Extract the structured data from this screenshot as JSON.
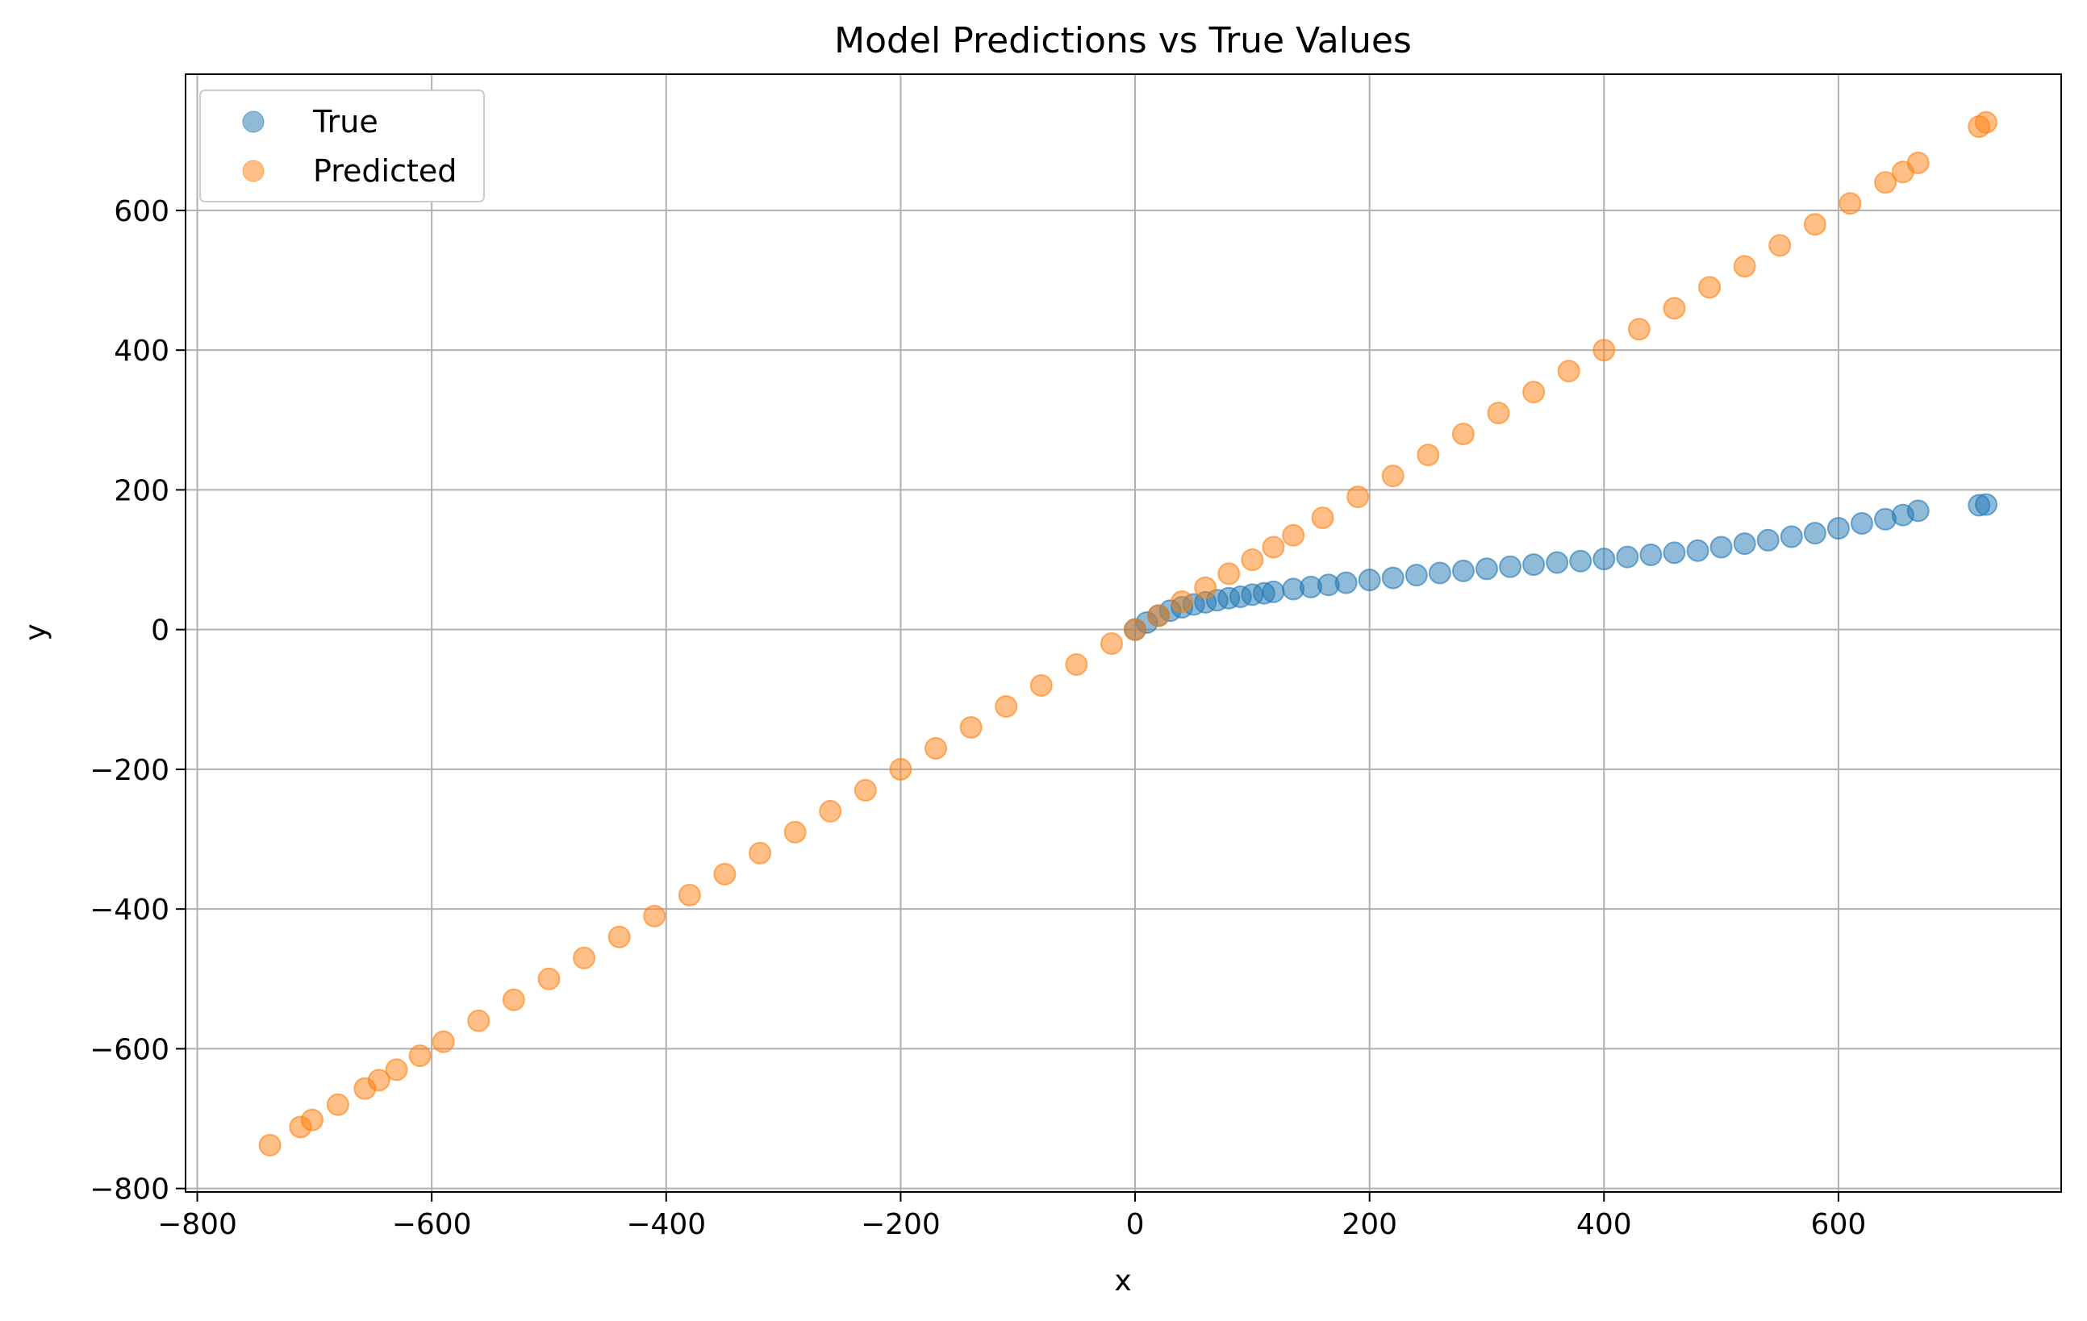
{
  "chart_data": {
    "type": "scatter",
    "title": "Model Predictions vs True Values",
    "xlabel": "x",
    "ylabel": "y",
    "xlim": [
      -810,
      790
    ],
    "ylim": [
      -805,
      795
    ],
    "xticks": [
      -800,
      -600,
      -400,
      -200,
      0,
      200,
      400,
      600
    ],
    "yticks": [
      -800,
      -600,
      -400,
      -200,
      0,
      200,
      400,
      600
    ],
    "xtick_labels": [
      "−800",
      "−600",
      "−400",
      "−200",
      "0",
      "200",
      "400",
      "600"
    ],
    "ytick_labels": [
      "−800",
      "−600",
      "−400",
      "−200",
      "0",
      "200",
      "400",
      "600"
    ],
    "grid": true,
    "legend_position": "top-left",
    "series": [
      {
        "name": "True",
        "color": "#1f77b4",
        "x": [
          0,
          10,
          20,
          30,
          40,
          50,
          60,
          70,
          80,
          90,
          100,
          110,
          118,
          135,
          150,
          165,
          180,
          200,
          220,
          240,
          260,
          280,
          300,
          320,
          340,
          360,
          380,
          400,
          420,
          440,
          460,
          480,
          500,
          520,
          540,
          560,
          580,
          600,
          620,
          640,
          655,
          668,
          720,
          726
        ],
        "y": [
          0,
          10,
          20,
          27,
          32,
          36,
          39,
          42,
          45,
          47,
          50,
          52,
          54,
          58,
          61,
          64,
          67,
          71,
          74,
          78,
          81,
          84,
          87,
          90,
          93,
          96,
          98,
          101,
          104,
          107,
          110,
          113,
          118,
          123,
          128,
          133,
          138,
          145,
          152,
          158,
          164,
          170,
          178,
          179
        ]
      },
      {
        "name": "Predicted",
        "color": "#ff7f0e",
        "x": [
          -738,
          -712,
          -702,
          -680,
          -657,
          -645,
          -630,
          -610,
          -590,
          -560,
          -530,
          -500,
          -470,
          -440,
          -410,
          -380,
          -350,
          -320,
          -290,
          -260,
          -230,
          -200,
          -170,
          -140,
          -110,
          -80,
          -50,
          -20,
          0,
          20,
          40,
          60,
          80,
          100,
          118,
          135,
          160,
          190,
          220,
          250,
          280,
          310,
          340,
          370,
          400,
          430,
          460,
          490,
          520,
          550,
          580,
          610,
          640,
          655,
          668,
          720,
          726
        ],
        "y": [
          -738,
          -712,
          -702,
          -680,
          -657,
          -645,
          -630,
          -610,
          -590,
          -560,
          -530,
          -500,
          -470,
          -440,
          -410,
          -380,
          -350,
          -320,
          -290,
          -260,
          -230,
          -200,
          -170,
          -140,
          -110,
          -80,
          -50,
          -20,
          0,
          20,
          40,
          60,
          80,
          100,
          118,
          135,
          160,
          190,
          220,
          250,
          280,
          310,
          340,
          370,
          400,
          430,
          460,
          490,
          520,
          550,
          580,
          610,
          640,
          655,
          668,
          720,
          726
        ]
      }
    ]
  }
}
